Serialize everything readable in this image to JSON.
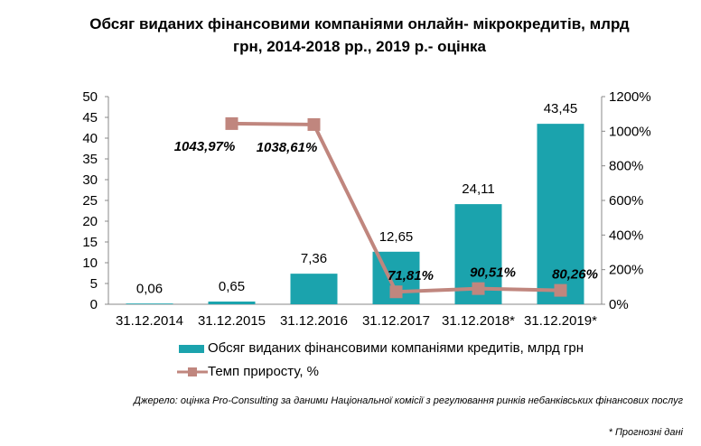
{
  "title_line1": "Обсяг виданих фінансовими компаніями онлайн- мікрокредитів, млрд",
  "title_line2": "грн, 2014-2018 рр., 2019 р.- оцінка",
  "chart_data": {
    "type": "bar+line",
    "categories": [
      "31.12.2014",
      "31.12.2015",
      "31.12.2016",
      "31.12.2017",
      "31.12.2018*",
      "31.12.2019*"
    ],
    "series": [
      {
        "name": "Обсяг виданих  фінансовими компаніями кредитів, млрд грн",
        "type": "bar",
        "axis": "left",
        "values": [
          0.06,
          0.65,
          7.36,
          12.65,
          24.11,
          43.45
        ],
        "labels": [
          "0,06",
          "0,65",
          "7,36",
          "12,65",
          "24,11",
          "43,45"
        ]
      },
      {
        "name": "Темп приросту, %",
        "type": "line",
        "axis": "right",
        "values": [
          null,
          1043.97,
          1038.61,
          71.81,
          90.51,
          80.26
        ],
        "labels": [
          null,
          "1043,97%",
          "1038,61%",
          "71,81%",
          "90,51%",
          "80,26%"
        ]
      }
    ],
    "left_axis": {
      "min": 0,
      "max": 50,
      "ticks": [
        "0",
        "5",
        "10",
        "15",
        "20",
        "25",
        "30",
        "35",
        "40",
        "45",
        "50"
      ]
    },
    "right_axis": {
      "min": 0,
      "max": 1200,
      "ticks": [
        "0%",
        "200%",
        "400%",
        "600%",
        "800%",
        "1000%",
        "1200%"
      ]
    },
    "legend_position": "bottom",
    "grid": false
  },
  "colors": {
    "bar": "#1ba3ad",
    "line": "#c0867e"
  },
  "source": "Джерело: оцінка Pro-Consulting за даними Національної комісії з регулювання ринків небанківських фінансових послуг",
  "note": "* Прогнозні дані"
}
